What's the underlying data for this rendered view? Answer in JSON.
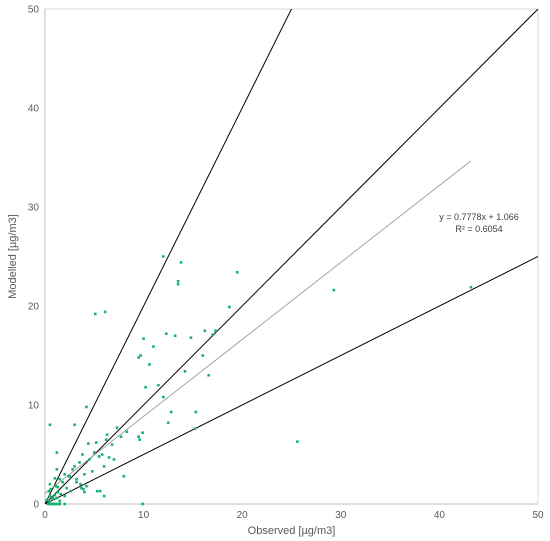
{
  "chart_data": {
    "type": "scatter",
    "title": "",
    "xlabel": "Observed [µg/m3]",
    "ylabel": "Modelled [µg/m3]",
    "xlim": [
      0,
      50
    ],
    "ylim": [
      0,
      50
    ],
    "xticks": [
      0,
      10,
      20,
      30,
      40,
      50
    ],
    "yticks": [
      0,
      10,
      20,
      30,
      40,
      50
    ],
    "grid": false,
    "legend": "none",
    "colors": {
      "points": "#16b36e",
      "reference_lines": "#000000",
      "trendline": "#a6a6a6"
    },
    "reference_lines": [
      {
        "slope": 2.0,
        "intercept": 0
      },
      {
        "slope": 1.0,
        "intercept": 0
      },
      {
        "slope": 0.5,
        "intercept": 0
      }
    ],
    "trendline": {
      "slope": 0.7778,
      "intercept": 1.066,
      "x_range": [
        0,
        43.2
      ]
    },
    "equation": {
      "line1": "y = 0.7778x + 1.066",
      "line2": "R² = 0.6054"
    },
    "series": [
      {
        "x": [
          0.2,
          0.4,
          0.5,
          0.6,
          0.8,
          1.0,
          1.1,
          1.2,
          1.3,
          1.5,
          1.6,
          1.8,
          2.0,
          2.2,
          2.4,
          2.6,
          0.3,
          0.5,
          0.7,
          0.9,
          1.2,
          1.4,
          0.4,
          0.6,
          1.0,
          1.5,
          2.0,
          0.5,
          1.0,
          1.3,
          0.8,
          0.4,
          1.2,
          1.5,
          2.0,
          2.5,
          2.8,
          3.0,
          3.2,
          3.5,
          3.6,
          3.8,
          4.0,
          4.2,
          4.0,
          4.5,
          4.8,
          5.0,
          5.2,
          5.5,
          5.8,
          6.0,
          6.2,
          6.5,
          6.8,
          7.0,
          7.3,
          7.7,
          8.0,
          8.3,
          3.2,
          3.7,
          3.9,
          4.4,
          5.3,
          5.6,
          6.0,
          6.3,
          9.5,
          9.7,
          10.0,
          10.2,
          10.6,
          11.0,
          11.5,
          12.0,
          12.3,
          12.5,
          12.8,
          13.2,
          13.5,
          14.2,
          14.8,
          15.2,
          15.3,
          16.0,
          16.2,
          16.6,
          17.0,
          17.3,
          18.7,
          19.5,
          5.1,
          6.1,
          12.0,
          13.5,
          13.8,
          9.5,
          9.6,
          9.9,
          25.6,
          29.3,
          43.2,
          0.5,
          1.2,
          3.0,
          4.2,
          9.9
        ],
        "y": [
          0.4,
          0.3,
          0.8,
          1.5,
          0.5,
          0.9,
          1.8,
          0.6,
          1.2,
          0.3,
          1.0,
          2.2,
          0.8,
          1.6,
          2.8,
          1.3,
          0.0,
          0.0,
          0.0,
          0.0,
          0.0,
          0.0,
          0.0,
          0.0,
          0.0,
          0.0,
          0.0,
          2.0,
          2.6,
          1.7,
          0.6,
          1.3,
          3.5,
          2.5,
          3.0,
          2.8,
          3.5,
          3.8,
          2.5,
          4.2,
          2.0,
          5.0,
          3.0,
          1.8,
          1.2,
          4.5,
          3.3,
          5.2,
          6.2,
          4.8,
          5.0,
          3.8,
          6.5,
          4.7,
          6.0,
          4.5,
          7.7,
          6.8,
          2.8,
          7.3,
          2.2,
          1.6,
          1.5,
          6.1,
          1.3,
          1.3,
          0.8,
          7.0,
          14.8,
          15.0,
          16.7,
          11.8,
          14.1,
          15.9,
          12.0,
          10.8,
          17.2,
          8.2,
          9.3,
          17.0,
          22.2,
          13.4,
          16.8,
          7.6,
          9.3,
          15.0,
          17.5,
          13.0,
          17.1,
          17.5,
          19.9,
          23.4,
          19.2,
          19.4,
          25.0,
          22.5,
          24.4,
          6.8,
          6.5,
          7.2,
          6.3,
          21.6,
          21.9,
          8.0,
          5.2,
          8.0,
          9.8,
          0.0
        ]
      }
    ]
  }
}
